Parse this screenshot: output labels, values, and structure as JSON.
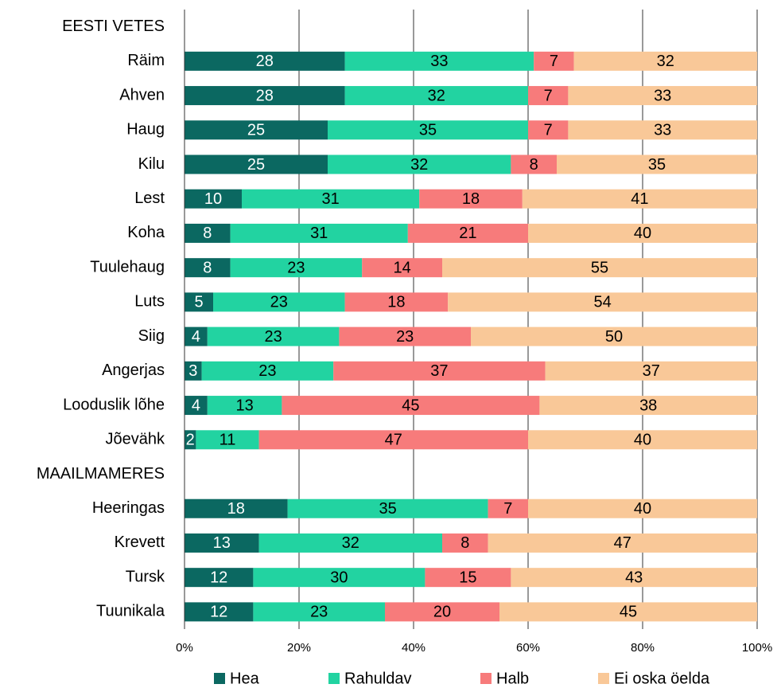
{
  "chart_data": {
    "type": "stacked_bar_horizontal",
    "categories": [
      "EESTI VETES",
      "Räim",
      "Ahven",
      "Haug",
      "Kilu",
      "Lest",
      "Koha",
      "Tuulehaug",
      "Luts",
      "Siig",
      "Angerjas",
      "Looduslik lõhe",
      "Jõevähk",
      "MAAILMAMERES",
      "Heeringas",
      "Krevett",
      "Tursk",
      "Tuunikala"
    ],
    "series": [
      {
        "name": "Hea",
        "color": "#0b6861",
        "values": [
          null,
          28,
          28,
          25,
          25,
          10,
          8,
          8,
          5,
          4,
          3,
          4,
          2,
          null,
          18,
          13,
          12,
          12
        ]
      },
      {
        "name": "Rahuldav",
        "color": "#22d3a1",
        "values": [
          null,
          33,
          32,
          35,
          32,
          31,
          31,
          23,
          23,
          23,
          23,
          13,
          11,
          null,
          35,
          32,
          30,
          23
        ]
      },
      {
        "name": "Halb",
        "color": "#f77b7b",
        "values": [
          null,
          7,
          7,
          7,
          8,
          18,
          21,
          14,
          18,
          23,
          37,
          45,
          47,
          null,
          7,
          8,
          15,
          20
        ]
      },
      {
        "name": "Ei oska öelda",
        "color": "#f9c898",
        "values": [
          null,
          32,
          33,
          33,
          35,
          41,
          40,
          55,
          54,
          50,
          37,
          38,
          40,
          null,
          40,
          47,
          43,
          45
        ]
      }
    ],
    "xlim": [
      0,
      100
    ],
    "xticks": [
      {
        "value": 0,
        "label": "0%"
      },
      {
        "value": 20,
        "label": "20%"
      },
      {
        "value": 40,
        "label": "40%"
      },
      {
        "value": 60,
        "label": "60%"
      },
      {
        "value": 80,
        "label": "80%"
      },
      {
        "value": 100,
        "label": "100%"
      }
    ],
    "grid": true,
    "legend": "bottom"
  }
}
